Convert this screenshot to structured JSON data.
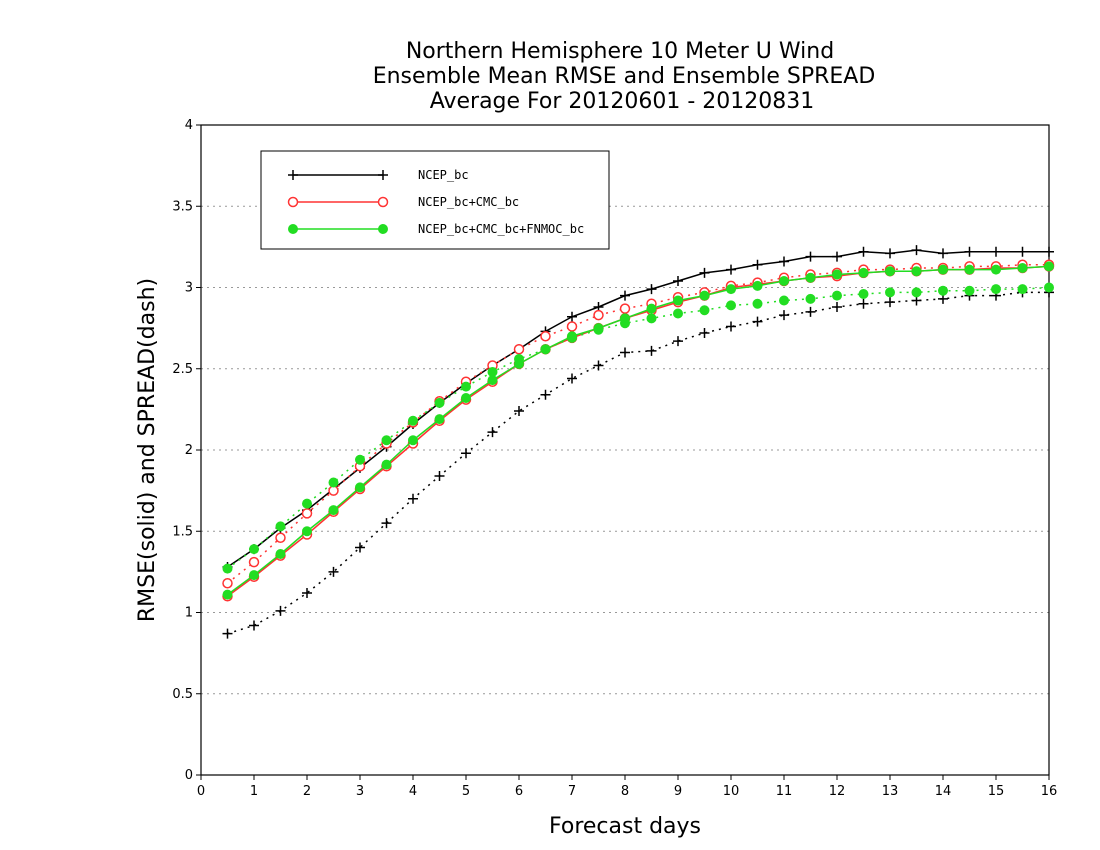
{
  "chart_data": {
    "type": "line",
    "title": [
      "Northern Hemisphere 10 Meter U Wind",
      "Ensemble Mean RMSE and Ensemble SPREAD",
      "Average For 20120601 - 20120831"
    ],
    "xlabel": "Forecast days",
    "ylabel": "RMSE(solid) and SPREAD(dash)",
    "xlim": [
      0,
      16
    ],
    "ylim": [
      0,
      4
    ],
    "xticks": [
      0,
      1,
      2,
      3,
      4,
      5,
      6,
      7,
      8,
      9,
      10,
      11,
      12,
      13,
      14,
      15,
      16
    ],
    "yticks": [
      0,
      0.5,
      1,
      1.5,
      2,
      2.5,
      3,
      3.5,
      4
    ],
    "grid": "horizontal dotted",
    "legend_position": "top-left",
    "x": [
      0.5,
      1,
      1.5,
      2,
      2.5,
      3,
      3.5,
      4,
      4.5,
      5,
      5.5,
      6,
      6.5,
      7,
      7.5,
      8,
      8.5,
      9,
      9.5,
      10,
      10.5,
      11,
      11.5,
      12,
      12.5,
      13,
      13.5,
      14,
      14.5,
      15,
      15.5,
      16
    ],
    "series": [
      {
        "name": "NCEP_bc",
        "metric": "RMSE",
        "style": "solid",
        "marker": "plus",
        "color": "#000000",
        "values": [
          1.28,
          1.39,
          1.52,
          1.63,
          1.76,
          1.89,
          2.02,
          2.16,
          2.29,
          2.41,
          2.52,
          2.62,
          2.73,
          2.82,
          2.88,
          2.95,
          2.99,
          3.04,
          3.09,
          3.11,
          3.14,
          3.16,
          3.19,
          3.19,
          3.22,
          3.21,
          3.23,
          3.21,
          3.22,
          3.22,
          3.22,
          3.22
        ]
      },
      {
        "name": "NCEP_bc",
        "metric": "SPREAD",
        "style": "dash",
        "marker": "plus",
        "color": "#000000",
        "values": [
          0.87,
          0.92,
          1.01,
          1.12,
          1.25,
          1.4,
          1.55,
          1.7,
          1.84,
          1.98,
          2.11,
          2.24,
          2.34,
          2.44,
          2.52,
          2.6,
          2.61,
          2.67,
          2.72,
          2.76,
          2.79,
          2.83,
          2.85,
          2.88,
          2.9,
          2.91,
          2.92,
          2.93,
          2.95,
          2.95,
          2.97,
          2.97
        ]
      },
      {
        "name": "NCEP_bc+CMC_bc",
        "metric": "RMSE",
        "style": "solid",
        "marker": "open-circle",
        "color": "#ff3333",
        "values": [
          1.1,
          1.22,
          1.35,
          1.48,
          1.62,
          1.76,
          1.9,
          2.04,
          2.18,
          2.31,
          2.42,
          2.53,
          2.62,
          2.69,
          2.75,
          2.81,
          2.86,
          2.91,
          2.95,
          3.0,
          3.02,
          3.04,
          3.06,
          3.07,
          3.09,
          3.1,
          3.1,
          3.11,
          3.11,
          3.12,
          3.12,
          3.13
        ]
      },
      {
        "name": "NCEP_bc+CMC_bc",
        "metric": "SPREAD",
        "style": "dash",
        "marker": "open-circle",
        "color": "#ff3333",
        "values": [
          1.18,
          1.31,
          1.46,
          1.61,
          1.75,
          1.9,
          2.04,
          2.17,
          2.3,
          2.42,
          2.52,
          2.62,
          2.7,
          2.76,
          2.83,
          2.87,
          2.9,
          2.94,
          2.97,
          3.01,
          3.03,
          3.06,
          3.08,
          3.09,
          3.11,
          3.11,
          3.12,
          3.12,
          3.13,
          3.13,
          3.14,
          3.14
        ]
      },
      {
        "name": "NCEP_bc+CMC_bc+FNMOC_bc",
        "metric": "RMSE",
        "style": "solid",
        "marker": "filled-circle",
        "color": "#22dd22",
        "values": [
          1.11,
          1.23,
          1.36,
          1.5,
          1.63,
          1.77,
          1.91,
          2.06,
          2.19,
          2.32,
          2.43,
          2.53,
          2.62,
          2.7,
          2.75,
          2.81,
          2.87,
          2.92,
          2.95,
          2.99,
          3.01,
          3.04,
          3.06,
          3.08,
          3.09,
          3.1,
          3.1,
          3.11,
          3.11,
          3.11,
          3.12,
          3.13
        ]
      },
      {
        "name": "NCEP_bc+CMC_bc+FNMOC_bc",
        "metric": "SPREAD",
        "style": "dash",
        "marker": "filled-circle",
        "color": "#22dd22",
        "values": [
          1.27,
          1.39,
          1.53,
          1.67,
          1.8,
          1.94,
          2.06,
          2.18,
          2.29,
          2.39,
          2.48,
          2.56,
          2.62,
          2.69,
          2.74,
          2.78,
          2.81,
          2.84,
          2.86,
          2.89,
          2.9,
          2.92,
          2.93,
          2.95,
          2.96,
          2.97,
          2.97,
          2.98,
          2.98,
          2.99,
          2.99,
          3.0
        ]
      }
    ],
    "legend": [
      {
        "label": "NCEP_bc",
        "color": "#000000",
        "marker": "plus"
      },
      {
        "label": "NCEP_bc+CMC_bc",
        "color": "#ff3333",
        "marker": "open-circle"
      },
      {
        "label": "NCEP_bc+CMC_bc+FNMOC_bc",
        "color": "#22dd22",
        "marker": "filled-circle"
      }
    ]
  }
}
